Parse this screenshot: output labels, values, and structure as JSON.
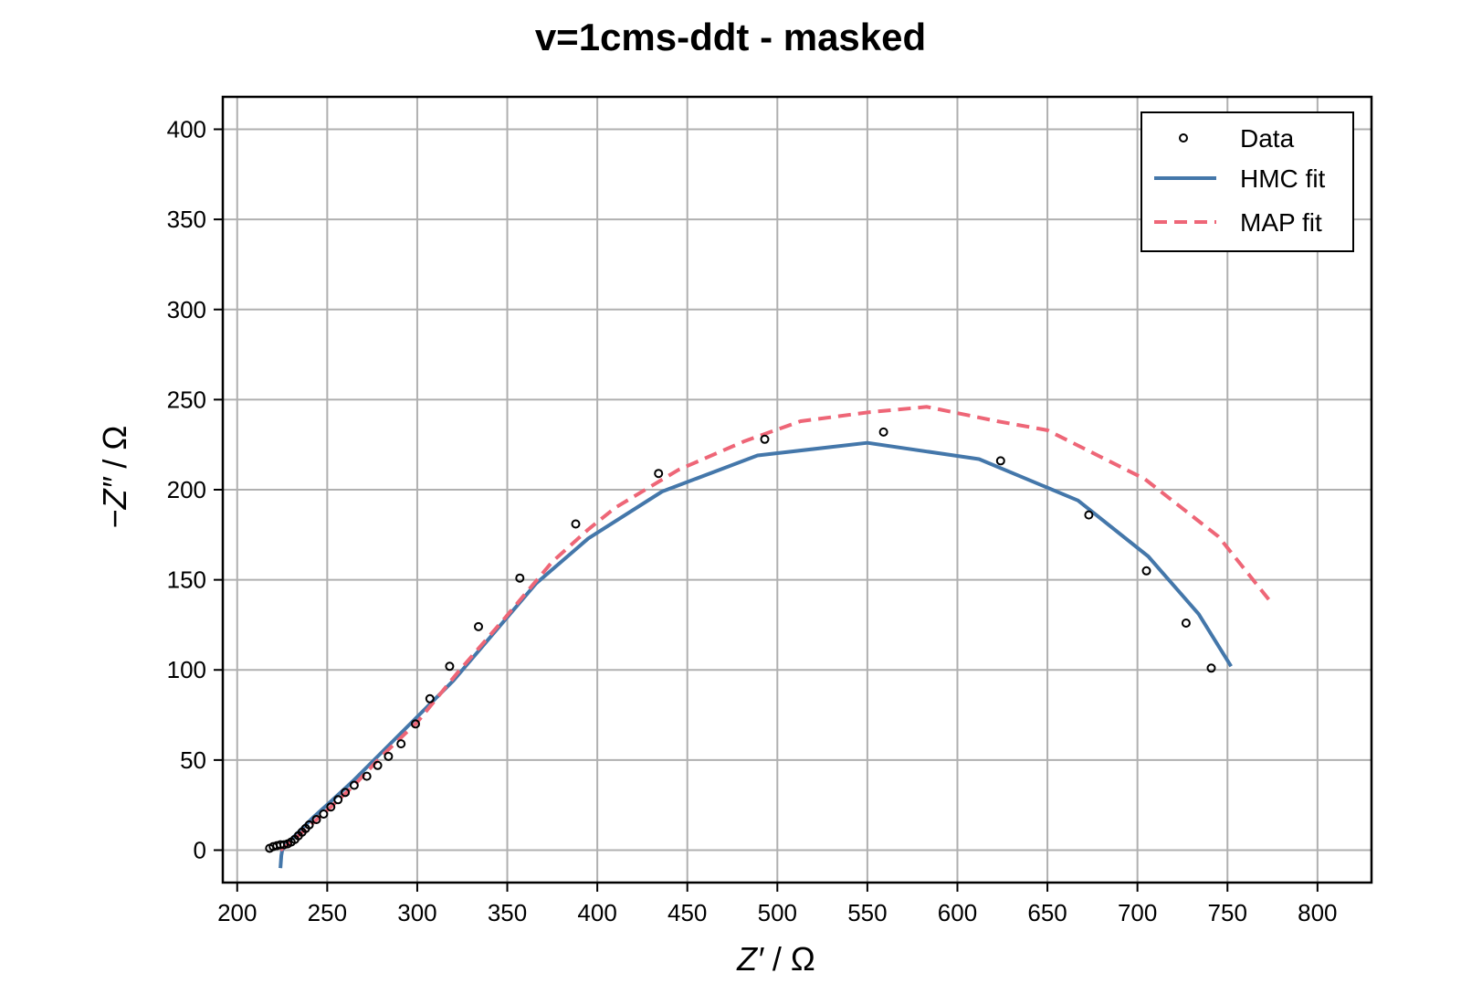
{
  "chart_data": {
    "type": "scatter",
    "title": "v=1cms-ddt - masked",
    "xlabel_var": "Z′",
    "xlabel_unit": " / Ω",
    "ylabel_minus": "−",
    "ylabel_var": "Z″",
    "ylabel_unit": " / Ω",
    "xlim": [
      192,
      830
    ],
    "ylim": [
      -18,
      418
    ],
    "xticks": [
      200,
      250,
      300,
      350,
      400,
      450,
      500,
      550,
      600,
      650,
      700,
      750,
      800
    ],
    "yticks": [
      0,
      50,
      100,
      150,
      200,
      250,
      300,
      350,
      400
    ],
    "grid": true,
    "legend_position": "top-right",
    "series": [
      {
        "name": "Data",
        "kind": "scatter",
        "color": "#000000",
        "x": [
          218,
          220,
          222,
          224,
          226,
          228,
          230,
          232,
          234,
          236,
          238,
          240,
          244,
          248,
          252,
          256,
          260,
          265,
          272,
          278,
          284,
          291,
          299,
          307,
          318,
          334,
          357,
          388,
          434,
          493,
          559,
          624,
          673,
          705,
          727,
          741
        ],
        "y": [
          1,
          2,
          2.5,
          3,
          3,
          3.5,
          4.5,
          6,
          8,
          10,
          12,
          14,
          17,
          20,
          24,
          28,
          32,
          36,
          41,
          47,
          52,
          59,
          70,
          84,
          102,
          124,
          151,
          181,
          209,
          228,
          232,
          216,
          186,
          155,
          126,
          101
        ]
      },
      {
        "name": "HMC fit",
        "kind": "line",
        "color": "#4477aa",
        "x": [
          224,
          224.5,
          225,
          227,
          230,
          235,
          242,
          252,
          265,
          280,
          300,
          320,
          343,
          366,
          395,
          436,
          489,
          550,
          612,
          667,
          706,
          734,
          752
        ],
        "y": [
          -10,
          -3,
          0,
          3,
          6,
          11,
          18,
          27,
          39,
          54,
          74,
          94,
          121,
          148,
          173,
          199,
          219,
          226,
          217,
          194,
          163,
          131,
          102
        ]
      },
      {
        "name": "MAP fit",
        "kind": "dashed",
        "color": "#ee6677",
        "x": [
          224,
          228,
          234,
          242,
          252,
          265,
          280,
          300,
          322,
          348,
          375,
          395,
          410,
          445,
          482,
          513,
          551,
          583,
          622,
          650,
          704,
          745,
          773
        ],
        "y": [
          0,
          3,
          8,
          15,
          24,
          36,
          52,
          71,
          98,
          128,
          160,
          178,
          190,
          211,
          227,
          238,
          243,
          246,
          238,
          233,
          206,
          174,
          139
        ]
      }
    ]
  }
}
